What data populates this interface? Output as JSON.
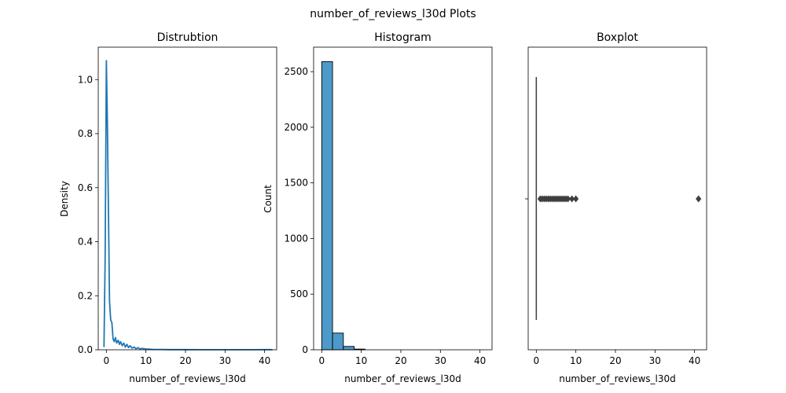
{
  "figure": {
    "suptitle": "number_of_reviews_l30d Plots"
  },
  "chart_data": [
    {
      "type": "line",
      "title": "Distrubtion",
      "xlabel": "number_of_reviews_l30d",
      "ylabel": "Density",
      "xlim": [
        -2.05,
        43.05
      ],
      "ylim": [
        0,
        1.12
      ],
      "xticks": [
        0,
        10,
        20,
        30,
        40
      ],
      "yticks": [
        0.0,
        0.2,
        0.4,
        0.6,
        0.8,
        1.0
      ],
      "ytick_labels": [
        "0.0",
        "0.2",
        "0.4",
        "0.6",
        "0.8",
        "1.0"
      ],
      "color": "#1f77b4",
      "x": [
        -0.6,
        -0.3,
        0,
        0.25,
        0.5,
        0.8,
        1.1,
        1.4,
        1.7,
        2.0,
        2.3,
        2.6,
        3.0,
        3.3,
        3.6,
        4.0,
        4.4,
        4.8,
        5.2,
        5.6,
        6.0,
        6.5,
        7.0,
        7.5,
        8.0,
        8.5,
        9.0,
        10.0,
        11.0,
        12.0,
        14,
        16,
        18,
        20,
        25,
        30,
        35,
        38,
        40,
        41,
        42
      ],
      "y": [
        0.01,
        0.35,
        1.07,
        0.85,
        0.55,
        0.18,
        0.11,
        0.1,
        0.04,
        0.03,
        0.045,
        0.025,
        0.035,
        0.02,
        0.03,
        0.015,
        0.025,
        0.01,
        0.02,
        0.008,
        0.015,
        0.006,
        0.01,
        0.004,
        0.008,
        0.003,
        0.005,
        0.003,
        0.002,
        0.001,
        0.001,
        0.0005,
        0.0005,
        0.0005,
        0.0004,
        0.0003,
        0.0003,
        0.0004,
        0.0006,
        0.0008,
        0.0004
      ]
    },
    {
      "type": "bar",
      "title": "Histogram",
      "xlabel": "number_of_reviews_l30d",
      "ylabel": "Count",
      "xlim": [
        -2.05,
        43.05
      ],
      "ylim": [
        0,
        2720
      ],
      "xticks": [
        0,
        10,
        20,
        30,
        40
      ],
      "yticks": [
        0,
        500,
        1000,
        1500,
        2000,
        2500
      ],
      "color": "#4c9ac9",
      "bin_width": 2.733,
      "bin_edges": [
        0,
        2.733,
        5.467,
        8.2,
        10.933
      ],
      "values": [
        2590,
        150,
        30,
        6
      ]
    },
    {
      "type": "boxplot",
      "title": "Boxplot",
      "xlabel": "number_of_reviews_l30d",
      "xlim": [
        -2.05,
        43.05
      ],
      "xticks": [
        0,
        10,
        20,
        30,
        40
      ],
      "whisker_low": 0,
      "whisker_high": 0,
      "outliers": [
        1,
        1.5,
        2,
        2.5,
        3,
        3.5,
        4,
        4.5,
        5,
        5.5,
        6,
        6.5,
        7,
        7.5,
        8,
        9,
        10,
        41
      ]
    }
  ]
}
